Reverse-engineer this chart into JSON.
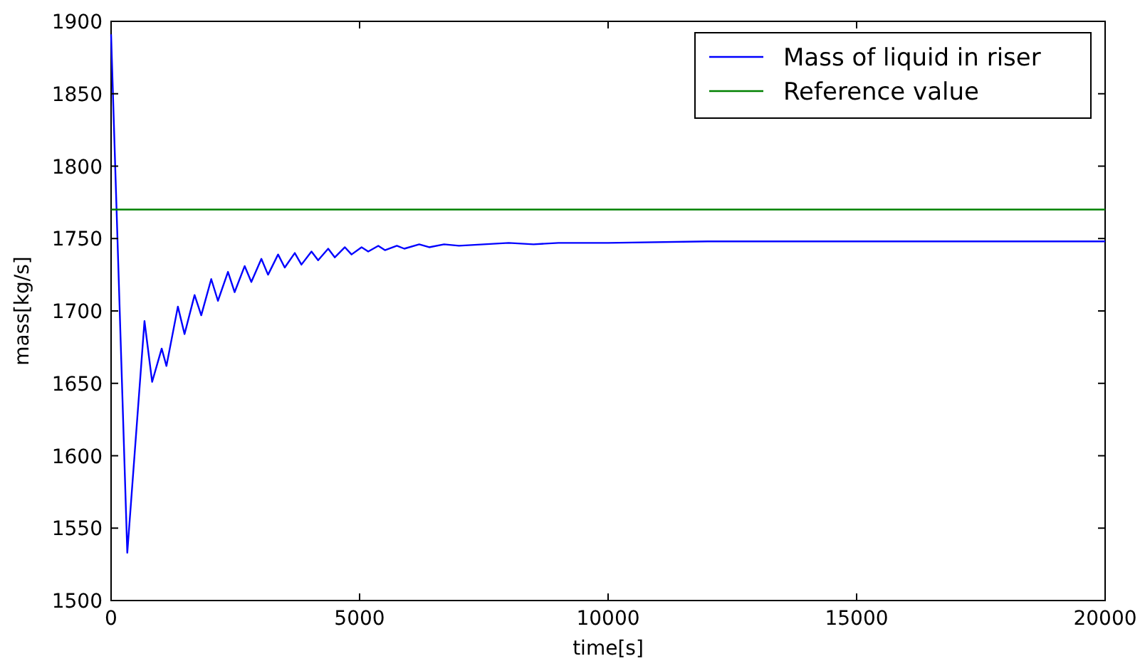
{
  "chart_data": {
    "type": "line",
    "xlabel": "time[s]",
    "ylabel": "mass[kg/s]",
    "xlim": [
      0,
      20000
    ],
    "ylim": [
      1500,
      1900
    ],
    "xticks": [
      0,
      5000,
      10000,
      15000,
      20000
    ],
    "yticks": [
      1500,
      1550,
      1600,
      1650,
      1700,
      1750,
      1800,
      1850,
      1900
    ],
    "grid": false,
    "legend": "top right",
    "series": [
      {
        "name": "Mass of liquid in riser",
        "color": "#0000ff",
        "x": [
          0,
          326,
          672,
          826,
          1018,
          1114,
          1344,
          1478,
          1680,
          1814,
          2015,
          2150,
          2352,
          2486,
          2688,
          2822,
          3024,
          3158,
          3360,
          3494,
          3696,
          3830,
          4032,
          4166,
          4368,
          4502,
          4704,
          4838,
          5040,
          5174,
          5376,
          5510,
          5750,
          5900,
          6200,
          6400,
          6700,
          7000,
          7500,
          8000,
          8500,
          9000,
          10000,
          12000,
          15000,
          17500,
          20000
        ],
        "values": [
          1891,
          1533,
          1693,
          1651,
          1674,
          1662,
          1703,
          1684,
          1711,
          1697,
          1722,
          1707,
          1727,
          1713,
          1731,
          1720,
          1736,
          1725,
          1739,
          1730,
          1740,
          1732,
          1741,
          1735,
          1743,
          1737,
          1744,
          1739,
          1744,
          1741,
          1745,
          1742,
          1745,
          1743,
          1746,
          1744,
          1746,
          1745,
          1746,
          1747,
          1746,
          1747,
          1747,
          1748,
          1748,
          1748,
          1748
        ]
      },
      {
        "name": "Reference value",
        "color": "#008000",
        "x": [
          0,
          20000
        ],
        "values": [
          1770,
          1770
        ]
      }
    ]
  }
}
